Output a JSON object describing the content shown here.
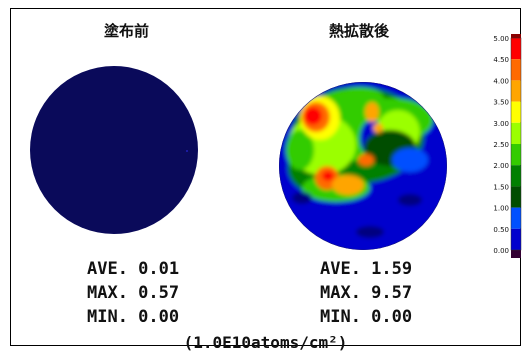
{
  "chart_data": {
    "type": "heatmap",
    "panels": [
      {
        "title": "塗布前",
        "ave_label": "AVE. 0.01",
        "max_label": "MAX. 0.57",
        "min_label": "MIN. 0.00",
        "ave": 0.01,
        "max": 0.57,
        "min": 0.0
      },
      {
        "title": "熱拡散後",
        "ave_label": "AVE. 1.59",
        "max_label": "MAX. 9.57",
        "min_label": "MIN. 0.00",
        "ave": 1.59,
        "max": 9.57,
        "min": 0.0
      }
    ],
    "colorbar": {
      "ticks": [
        "5.00",
        "4.50",
        "4.00",
        "3.50",
        "3.00",
        "2.50",
        "2.00",
        "1.50",
        "1.00",
        "0.50",
        "0.00"
      ],
      "colors": [
        "#ff0000",
        "#ff6a00",
        "#ffa500",
        "#ffff00",
        "#9bff00",
        "#33cc00",
        "#008000",
        "#004d00",
        "#0050ff",
        "#0000cd",
        "#000080"
      ],
      "over_color": "#8b0000",
      "under_color": "#330033"
    },
    "unit_caption": "(1.0E10atoms/cm²)"
  },
  "colors": {
    "background_level": "#0a0a5a"
  }
}
